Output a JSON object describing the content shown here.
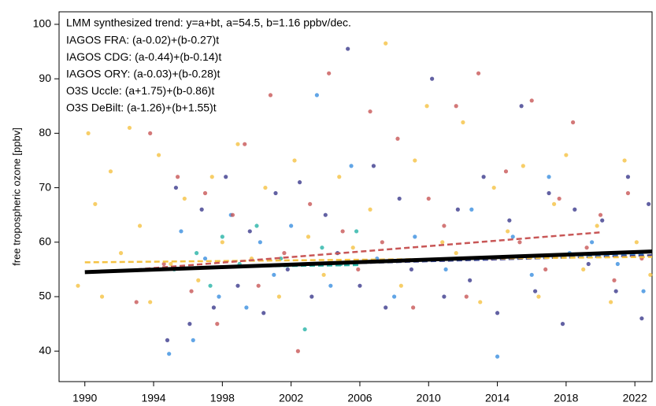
{
  "chart_data": {
    "type": "scatter",
    "y_label": "free tropospheric ozone [ppbv]",
    "xlim": [
      1988.5,
      2023.0
    ],
    "ylim": [
      34.4,
      102.3
    ],
    "xticks": [
      1990,
      1994,
      1998,
      2002,
      2006,
      2010,
      2014,
      2018,
      2022
    ],
    "yticks": [
      40,
      50,
      60,
      70,
      80,
      90,
      100
    ],
    "legend": "top-left",
    "trend": {
      "name": "LMM synthesized trend: y=a+bt, a=54.5, b=1.16 ppbv/dec.",
      "color": "#000000",
      "x": [
        1990,
        2023
      ],
      "values": [
        54.5,
        58.3
      ]
    },
    "series": [
      {
        "name": "IAGOS FRA: (a-0.02)+(b-0.27)t",
        "color": "#3b3a8c",
        "x": [
          1994.8,
          1995.3,
          1996.1,
          1996.8,
          1997.5,
          1998.2,
          1998.9,
          1999.6,
          2000.4,
          2001.1,
          2001.8,
          2002.5,
          2003.2,
          2004.0,
          2004.7,
          2005.3,
          2006.0,
          2006.8,
          2007.5,
          2008.3,
          2009.0,
          2010.2,
          2010.9,
          2011.7,
          2012.4,
          2013.2,
          2014.0,
          2014.7,
          2015.4,
          2016.2,
          2017.0,
          2017.8,
          2018.5,
          2019.3,
          2020.1,
          2020.9,
          2021.6,
          2022.4,
          2022.8
        ],
        "values": [
          42,
          70,
          45,
          66,
          48,
          72,
          52,
          62,
          47,
          69,
          55,
          71,
          50,
          65,
          58,
          95.5,
          52,
          74,
          48,
          68,
          55,
          90,
          50,
          66,
          53,
          72,
          47,
          64,
          85,
          51,
          69,
          45,
          66,
          56,
          64,
          51,
          72,
          46,
          67
        ],
        "trend": {
          "x": [
            1994.5,
            2023
          ],
          "values": [
            55.2,
            57.6
          ]
        }
      },
      {
        "name": "IAGOS CDG: (a-0.44)+(b-0.14)t",
        "color": "#3a8ee0",
        "x": [
          1994.9,
          1995.6,
          1996.3,
          1997.0,
          1997.8,
          1998.5,
          1999.4,
          2000.2,
          2001.0,
          2002.0,
          2003.5,
          2004.3,
          2005.5,
          2007.0,
          2008.0,
          2009.2,
          2011.0,
          2012.5,
          2014.0,
          2014.9,
          2016.0,
          2017.0,
          2018.2,
          2019.5,
          2021.0,
          2022.5
        ],
        "values": [
          39.5,
          62,
          42,
          57,
          50,
          65,
          48,
          60,
          54,
          63,
          87,
          52,
          74,
          57,
          50,
          61,
          55,
          66,
          39,
          61,
          54,
          72,
          58,
          60,
          56,
          51
        ],
        "trend": {
          "x": [
            1994.5,
            2022.5
          ],
          "values": [
            55.0,
            57.9
          ]
        }
      },
      {
        "name": "IAGOS ORY: (a-0.03)+(b-0.28)t",
        "color": "#26b3a6",
        "x": [
          1995.2,
          1996.5,
          1997.3,
          1998.0,
          1999.0,
          2000.0,
          2001.4,
          2002.8,
          2003.8,
          2004.9,
          2005.8
        ],
        "values": [
          55,
          58,
          52,
          61,
          56,
          63,
          57,
          44,
          59,
          56,
          62
        ],
        "trend": {
          "x": [
            1994.5,
            2006
          ],
          "values": [
            55.3,
            55.8
          ]
        }
      },
      {
        "name": "O3S Uccle: (a+1.75)+(b-0.86)t",
        "color": "#f5c242",
        "x": [
          1989.6,
          1990.2,
          1990.6,
          1991.0,
          1991.5,
          1992.1,
          1992.6,
          1993.2,
          1993.8,
          1994.3,
          1995.0,
          1995.8,
          1996.6,
          1997.4,
          1998.0,
          1998.9,
          1999.7,
          2000.5,
          2001.3,
          2002.2,
          2003.0,
          2003.9,
          2004.8,
          2005.6,
          2006.6,
          2007.5,
          2008.4,
          2009.2,
          2009.9,
          2010.8,
          2011.6,
          2012.0,
          2013.0,
          2013.8,
          2014.6,
          2015.5,
          2016.4,
          2017.3,
          2018.0,
          2019.0,
          2019.8,
          2020.6,
          2021.4,
          2022.1,
          2022.9
        ],
        "values": [
          52,
          80,
          67,
          50,
          73,
          58,
          81,
          63,
          49,
          76,
          56,
          68,
          53,
          72,
          60,
          78,
          57,
          70,
          50,
          75,
          61,
          54,
          72,
          59,
          66,
          96.5,
          52,
          75,
          85,
          60,
          58,
          82,
          49,
          70,
          62,
          74,
          50,
          67,
          76,
          55,
          63,
          49,
          75,
          60,
          54
        ],
        "trend": {
          "x": [
            1990,
            2023
          ],
          "values": [
            56.3,
            57.3
          ]
        }
      },
      {
        "name": "O3S DeBilt: (a-1.26)+(b+1.55)t",
        "color": "#c85656",
        "x": [
          1993.0,
          1993.8,
          1994.6,
          1995.4,
          1996.2,
          1997.0,
          1997.7,
          1998.6,
          1999.3,
          2000.1,
          2000.8,
          2001.6,
          2002.4,
          2003.1,
          2004.2,
          2005.0,
          2005.9,
          2006.6,
          2007.3,
          2008.2,
          2009.1,
          2010.0,
          2010.9,
          2011.6,
          2012.2,
          2012.9,
          2013.7,
          2014.5,
          2015.3,
          2016.0,
          2016.8,
          2017.6,
          2018.4,
          2019.2,
          2020.0,
          2020.8,
          2021.6,
          2022.4
        ],
        "values": [
          49,
          80,
          56,
          72,
          51,
          69,
          45,
          65,
          78,
          52,
          87,
          58,
          40,
          67,
          91,
          62,
          55,
          84,
          60,
          79,
          48,
          68,
          63,
          85,
          50,
          91,
          57,
          73,
          60,
          86,
          55,
          68,
          82,
          59,
          65,
          53,
          69,
          57
        ],
        "trend": {
          "x": [
            1993,
            2020
          ],
          "values": [
            55.0,
            61.8
          ]
        }
      }
    ]
  }
}
